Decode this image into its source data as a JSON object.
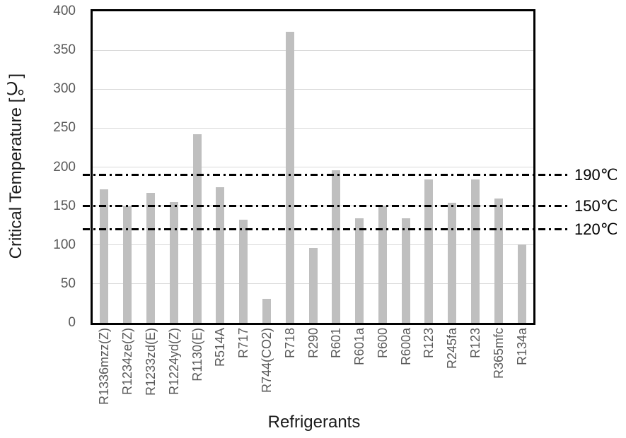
{
  "chart_data": {
    "type": "bar",
    "title": "",
    "xlabel": "Refrigerants",
    "ylabel": "Critical Temperature [℃]",
    "categories": [
      "R1336mzz(Z)",
      "R1234ze(Z)",
      "R1233zd(E)",
      "R1224yd(Z)",
      "R1130(E)",
      "R514A",
      "R717",
      "R744(CO2)",
      "R718",
      "R290",
      "R601",
      "R601a",
      "R600",
      "R600a",
      "R123",
      "R245fa",
      "R123",
      "R365mfc",
      "R134a"
    ],
    "values": [
      171,
      150,
      167,
      155,
      242,
      174,
      132,
      31,
      374,
      96,
      196,
      134,
      151,
      134,
      184,
      154,
      184,
      160,
      101
    ],
    "ylim": [
      0,
      400
    ],
    "yticks": [
      0,
      50,
      100,
      150,
      200,
      250,
      300,
      350,
      400
    ],
    "grid": "horizontal-major",
    "legend": "none",
    "bar_color": "#BFBFBF",
    "gridline_color": "#D9D9D9",
    "tick_label_color": "#595959",
    "reference_lines": [
      {
        "value": 190,
        "label": "190℃"
      },
      {
        "value": 150,
        "label": "150℃"
      },
      {
        "value": 120,
        "label": "120℃"
      }
    ]
  }
}
